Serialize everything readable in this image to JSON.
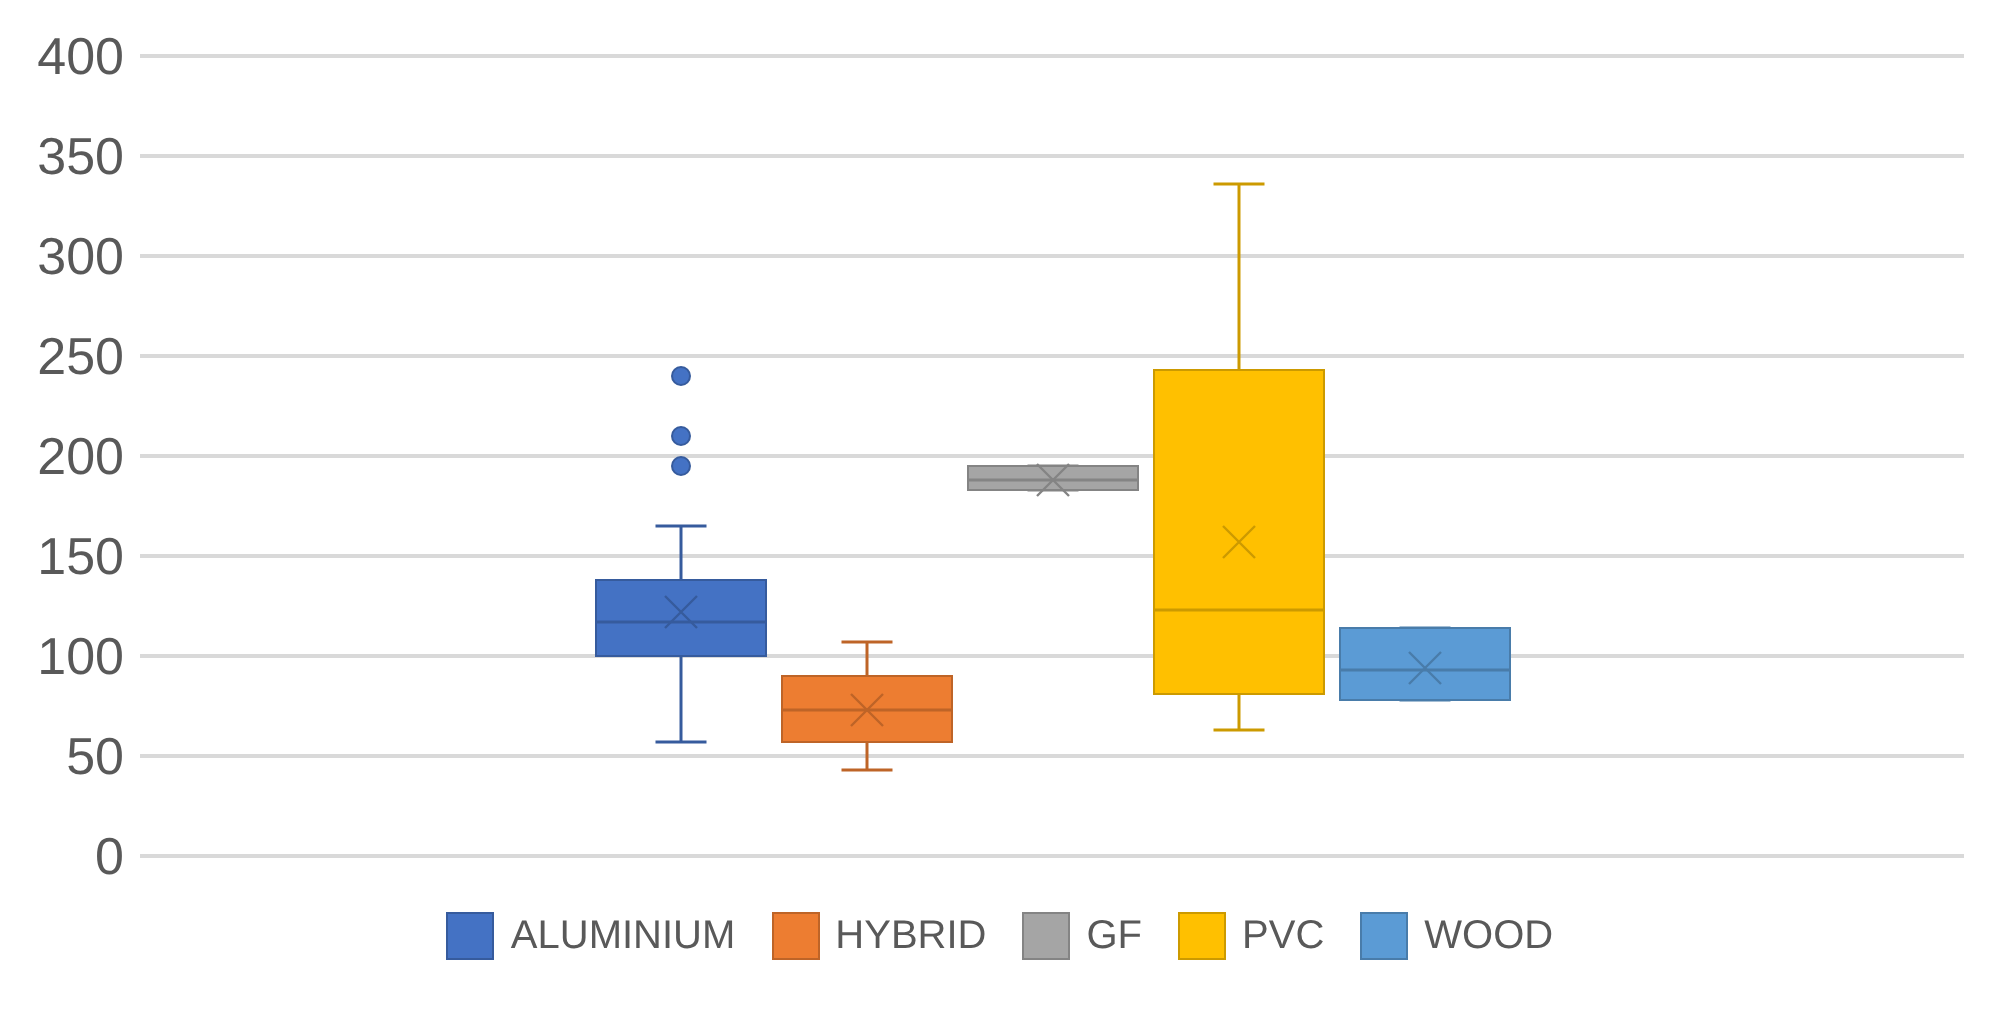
{
  "chart_data": {
    "type": "box",
    "categories": [
      null
    ],
    "series": [
      {
        "name": "ALUMINIUM",
        "color": "#4472c4",
        "boxes": [
          {
            "low": 57,
            "q1": 100,
            "median": 117,
            "q3": 138,
            "high": 165,
            "mean": 122,
            "outliers": [
              195,
              210,
              240
            ]
          }
        ]
      },
      {
        "name": "HYBRID",
        "color": "#ed7d31",
        "boxes": [
          {
            "low": 43,
            "q1": 57,
            "median": 73,
            "q3": 90,
            "high": 107,
            "mean": 73
          }
        ]
      },
      {
        "name": "GF",
        "color": "#a5a5a5",
        "boxes": [
          {
            "low": 183,
            "q1": 183,
            "median": 188,
            "q3": 195,
            "high": 195,
            "mean": 188
          }
        ]
      },
      {
        "name": "PVC",
        "color": "#ffc000",
        "boxes": [
          {
            "low": 63,
            "q1": 81,
            "median": 123,
            "q3": 243,
            "high": 336,
            "mean": 157
          }
        ]
      },
      {
        "name": "WOOD",
        "color": "#5b9bd5",
        "boxes": [
          {
            "low": 78,
            "q1": 78,
            "median": 93,
            "q3": 114,
            "high": 114,
            "mean": 94
          }
        ]
      }
    ],
    "ylim": [
      0,
      400
    ],
    "yticks": [
      0,
      50,
      100,
      150,
      200,
      250,
      300,
      350,
      400
    ],
    "grid": "y",
    "legend": "bottom",
    "tick_labels": "y",
    "marker": "circle"
  }
}
